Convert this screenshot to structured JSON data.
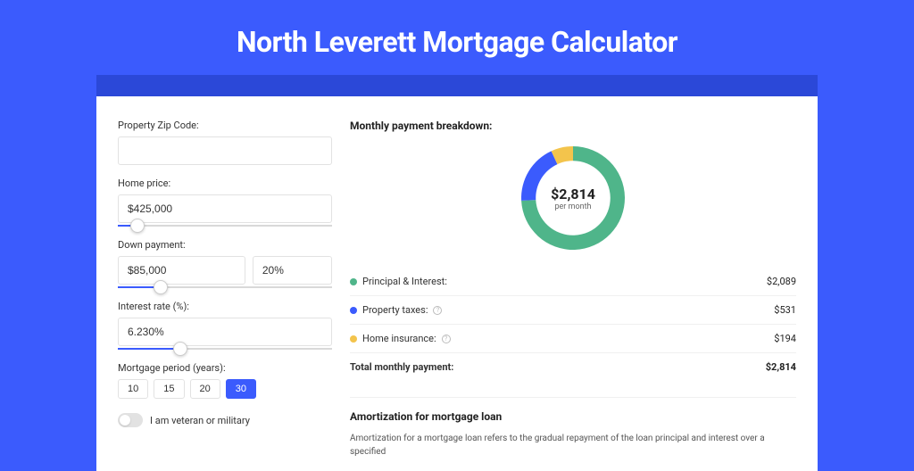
{
  "title": "North Leverett Mortgage Calculator",
  "colors": {
    "page_bg": "#3b5bfd",
    "header_band": "#2b48d8",
    "card_bg": "#ffffff",
    "accent": "#3b5bfd",
    "border": "#e2e2e2",
    "text": "#333333",
    "muted": "#666666",
    "divider": "#f0f0f0"
  },
  "form": {
    "zip": {
      "label": "Property Zip Code:",
      "value": ""
    },
    "home_price": {
      "label": "Home price:",
      "value": "$425,000",
      "slider_pct": 9
    },
    "down_payment": {
      "label": "Down payment:",
      "amount": "$85,000",
      "pct": "20%",
      "slider_pct": 20
    },
    "interest_rate": {
      "label": "Interest rate (%):",
      "value": "6.230%",
      "slider_pct": 29
    },
    "period": {
      "label": "Mortgage period (years):",
      "options": [
        "10",
        "15",
        "20",
        "30"
      ],
      "selected": "30"
    },
    "veteran": {
      "label": "I am veteran or military",
      "on": false
    }
  },
  "breakdown": {
    "title": "Monthly payment breakdown:",
    "donut": {
      "amount": "$2,814",
      "sub": "per month",
      "slices": [
        {
          "key": "principal_interest",
          "color": "#4fb58a",
          "pct": 74.2
        },
        {
          "key": "property_taxes",
          "color": "#3b5bfd",
          "pct": 18.9
        },
        {
          "key": "home_insurance",
          "color": "#f3c44c",
          "pct": 6.9
        }
      ],
      "thickness_ratio": 0.28
    },
    "rows": [
      {
        "key": "principal_interest",
        "label": "Principal & Interest:",
        "color": "#4fb58a",
        "value": "$2,089",
        "info": false
      },
      {
        "key": "property_taxes",
        "label": "Property taxes:",
        "color": "#3b5bfd",
        "value": "$531",
        "info": true
      },
      {
        "key": "home_insurance",
        "label": "Home insurance:",
        "color": "#f3c44c",
        "value": "$194",
        "info": true
      }
    ],
    "total": {
      "label": "Total monthly payment:",
      "value": "$2,814"
    }
  },
  "amortization": {
    "title": "Amortization for mortgage loan",
    "text": "Amortization for a mortgage loan refers to the gradual repayment of the loan principal and interest over a specified"
  }
}
